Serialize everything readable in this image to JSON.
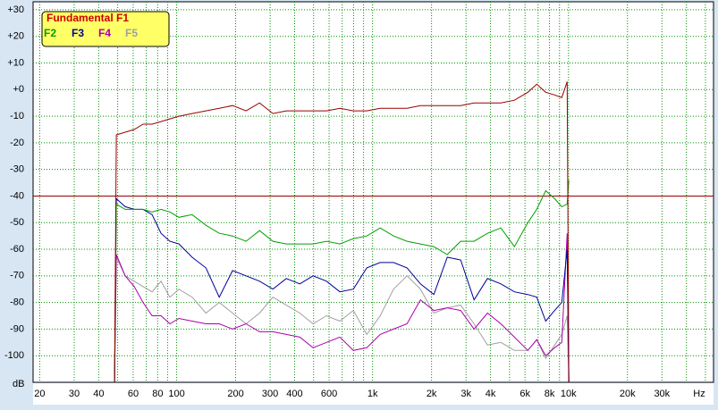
{
  "chart_data": {
    "type": "line",
    "log_x": true,
    "grid": true,
    "x_unit": "Hz",
    "y_unit": "dB",
    "xlim": [
      18.5,
      55000
    ],
    "ylim": [
      -110,
      33
    ],
    "xticks": [
      20,
      30,
      40,
      60,
      80,
      100,
      200,
      300,
      400,
      600,
      {
        "value": 1000,
        "label": "1k"
      },
      {
        "value": 2000,
        "label": "2k"
      },
      {
        "value": 3000,
        "label": "3k"
      },
      {
        "value": 4000,
        "label": "4k"
      },
      {
        "value": 6000,
        "label": "6k"
      },
      {
        "value": 8000,
        "label": "8k"
      },
      {
        "value": 10000,
        "label": "10k"
      },
      {
        "value": 20000,
        "label": "20k"
      },
      {
        "value": 30000,
        "label": "30k"
      }
    ],
    "x_minor_grid": [
      50,
      70,
      90,
      500,
      700,
      800,
      900,
      5000,
      7000,
      9000,
      40000,
      50000
    ],
    "yticks": [
      {
        "value": 30,
        "label": "+30"
      },
      {
        "value": 20,
        "label": "+20"
      },
      {
        "value": 10,
        "label": "+10"
      },
      {
        "value": 0,
        "label": "+0"
      },
      -10,
      -20,
      -30,
      -40,
      -50,
      -60,
      -70,
      -80,
      -90,
      -100
    ],
    "reference_line": {
      "value": -40,
      "color": "#990000"
    },
    "x": [
      48.2,
      49.2,
      54.6,
      60.7,
      67.4,
      74.9,
      83.2,
      92.4,
      102.7,
      120,
      141,
      165,
      193,
      226,
      265,
      310,
      363,
      425,
      497,
      582,
      681,
      798,
      934,
      1094,
      1280,
      1499,
      1755,
      2055,
      2406,
      2817,
      3298,
      3862,
      4521,
      5294,
      6198,
      6886,
      7648,
      8495,
      9241,
      9844,
      10047
    ],
    "series": [
      {
        "name": "Fundamental F1",
        "color": "#990000",
        "values": [
          -110,
          -17,
          -16,
          -15,
          -13,
          -13,
          -12,
          -11,
          -10,
          -9,
          -8,
          -7,
          -6,
          -8,
          -5,
          -9,
          -8,
          -8,
          -8,
          -8,
          -7,
          -8,
          -8,
          -7,
          -7,
          -7,
          -6,
          -6,
          -6,
          -6,
          -5,
          -5,
          -5,
          -4,
          -1,
          2,
          -1,
          -2,
          -3,
          3,
          -110
        ]
      },
      {
        "name": "F2",
        "color": "#00a000",
        "values": [
          -110,
          -43,
          -45,
          -45,
          -45,
          -46,
          -45,
          -46,
          -48,
          -47,
          -51,
          -54,
          -55,
          -57,
          -53,
          -57,
          -58,
          -58,
          -58,
          -57,
          -58,
          -56,
          -55,
          -52,
          -55,
          -57,
          -58,
          -59,
          -62,
          -57,
          -57,
          -54,
          -52,
          -59,
          -50,
          -45,
          -38,
          -41,
          -44,
          -43,
          -34
        ]
      },
      {
        "name": "F3",
        "color": "#000099",
        "values": [
          -110,
          -41,
          -44,
          -45,
          -45,
          -47,
          -54,
          -57,
          -58,
          -63,
          -67,
          -78,
          -68,
          -70,
          -72,
          -75,
          -71,
          -73,
          -70,
          -72,
          -76,
          -75,
          -67,
          -65,
          -65,
          -67,
          -73,
          -77,
          -63,
          -64,
          -79,
          -71,
          -73,
          -76,
          -77,
          -78,
          -87,
          -83,
          -80,
          -60,
          -110
        ]
      },
      {
        "name": "F4",
        "color": "#aa00aa",
        "values": [
          -110,
          -62,
          -70,
          -74,
          -80,
          -85,
          -85,
          -88,
          -86,
          -87,
          -88,
          -88,
          -90,
          -88,
          -91,
          -91,
          -92,
          -93,
          -97,
          -95,
          -93,
          -98,
          -97,
          -92,
          -90,
          -88,
          -79,
          -83,
          -82,
          -83,
          -90,
          -84,
          -88,
          -93,
          -98,
          -94,
          -100,
          -97,
          -95,
          -54,
          -110
        ]
      },
      {
        "name": "F5",
        "color": "#a0a0a0",
        "values": [
          -110,
          -63,
          -70,
          -72,
          -74,
          -76,
          -72,
          -78,
          -75,
          -78,
          -84,
          -80,
          -84,
          -88,
          -84,
          -78,
          -81,
          -84,
          -88,
          -85,
          -87,
          -83,
          -92,
          -85,
          -75,
          -70,
          -75,
          -84,
          -82,
          -81,
          -88,
          -96,
          -95,
          -98,
          -98,
          -94,
          -101,
          -96,
          -92,
          -85,
          -110
        ]
      }
    ]
  }
}
